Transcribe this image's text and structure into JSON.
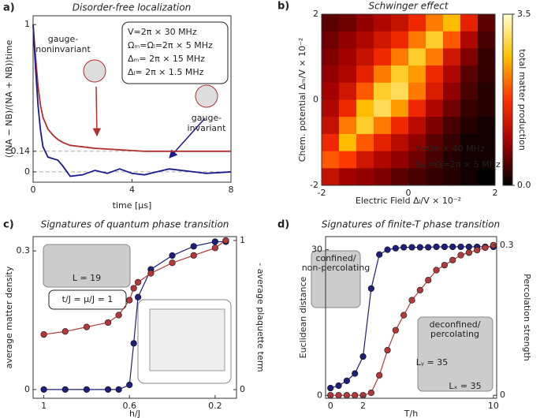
{
  "chart_data": [
    {
      "type": "line",
      "label": "a)",
      "title": "Disorder-free localization",
      "xlabel": "time [μs]",
      "ylabel": "⟨(NA − NB)/(NA + NB)⟩time",
      "x": [
        0,
        0.1,
        0.2,
        0.3,
        0.4,
        0.6,
        0.8,
        1,
        1.2,
        1.5,
        2,
        2.5,
        3,
        3.5,
        4,
        4.5,
        5,
        5.5,
        6,
        7,
        8
      ],
      "series": [
        {
          "name": "gauge-noninvariant",
          "color": "#b03030",
          "values": [
            1,
            0.78,
            0.58,
            0.45,
            0.37,
            0.29,
            0.25,
            0.22,
            0.2,
            0.18,
            0.17,
            0.16,
            0.155,
            0.15,
            0.145,
            0.14,
            0.14,
            0.14,
            0.14,
            0.14,
            0.14
          ]
        },
        {
          "name": "gauge-invariant",
          "color": "#1a1a8c",
          "values": [
            1,
            0.7,
            0.45,
            0.28,
            0.17,
            0.1,
            0.09,
            0.08,
            0.04,
            -0.03,
            -0.02,
            0.01,
            -0.01,
            0.02,
            -0.01,
            -0.02,
            0,
            0.02,
            0.01,
            -0.01,
            0
          ]
        }
      ],
      "xlim": [
        0,
        8
      ],
      "xticks": [
        0,
        4,
        8
      ],
      "ylim": [
        -0.07,
        1.06
      ],
      "yticks": [
        0,
        0.14,
        1
      ],
      "hlines": [
        0.14,
        0
      ],
      "annotations": [
        {
          "text": "gauge-",
          "color": "#b03030"
        },
        {
          "text": "noninvariant",
          "color": "#b03030"
        },
        {
          "text": "V=2π × 30 MHz",
          "color": "#222"
        },
        {
          "text": "Ωₘ=Ωₗ=2π × 5 MHz",
          "color": "#222"
        },
        {
          "text": "Δₘ= 2π × 15 MHz",
          "color": "#222"
        },
        {
          "text": "Δₗ= 2π × 1.5 MHz",
          "color": "#222"
        },
        {
          "text": "gauge-",
          "color": "#1a1a8c"
        },
        {
          "text": "invariant",
          "color": "#1a1a8c"
        }
      ]
    },
    {
      "type": "heatmap",
      "label": "b)",
      "title": "Schwinger effect",
      "xlabel": "Electric Field Δₗ/V × 10⁻²",
      "ylabel": "Chem. potential Δₘ/V × 10⁻²",
      "colorbar_label": "total matter production",
      "xlim": [
        -2,
        2
      ],
      "xticks": [
        -2,
        0,
        2
      ],
      "ylim": [
        -2,
        2
      ],
      "yticks": [
        -2,
        0,
        2
      ],
      "clim": [
        0,
        3.5
      ],
      "cticks": [
        {
          "value": 0,
          "label": "0.0"
        },
        3.5
      ],
      "colors": [
        "#000000",
        "#a00000",
        "#ff3000",
        "#ffc000",
        "#ffffd0"
      ],
      "z": [
        [
          0.5,
          0.6,
          0.8,
          1.0,
          1.2,
          1.6,
          2.2,
          2.6,
          1.5,
          0.5
        ],
        [
          0.6,
          0.8,
          1.0,
          1.3,
          1.6,
          2.2,
          2.8,
          2.0,
          1.0,
          0.4
        ],
        [
          0.7,
          0.9,
          1.2,
          1.6,
          2.2,
          2.8,
          2.2,
          1.3,
          0.7,
          0.3
        ],
        [
          0.8,
          1.0,
          1.5,
          2.2,
          2.8,
          2.4,
          1.6,
          1.0,
          0.5,
          0.3
        ],
        [
          0.9,
          1.3,
          2.0,
          2.8,
          3.0,
          2.2,
          1.4,
          0.8,
          0.4,
          0.2
        ],
        [
          1.0,
          1.6,
          2.6,
          3.0,
          2.4,
          1.6,
          1.0,
          0.6,
          0.3,
          0.2
        ],
        [
          1.2,
          2.2,
          2.8,
          2.2,
          1.6,
          1.1,
          0.7,
          0.4,
          0.2,
          0.1
        ],
        [
          1.6,
          2.6,
          2.0,
          1.5,
          1.1,
          0.8,
          0.5,
          0.3,
          0.1,
          0.1
        ],
        [
          2.0,
          1.8,
          1.3,
          1.0,
          0.8,
          0.6,
          0.4,
          0.2,
          0.1,
          0.1
        ],
        [
          1.2,
          0.9,
          0.8,
          0.7,
          0.5,
          0.4,
          0.3,
          0.2,
          0.1,
          0.0
        ]
      ],
      "annotations": [
        {
          "text": "V=2π × 40 MHz",
          "color": "#fff"
        },
        {
          "text": "Ωₘ=Ωₗ=2π × 5 MHz",
          "color": "#fff"
        }
      ]
    },
    {
      "type": "line",
      "markers": true,
      "label": "c)",
      "title": "Signatures of quantum phase transition",
      "xlabel": "h/J",
      "ylabel": "average matter density",
      "y2label": "- average plaquette term",
      "x": [
        1,
        0.9,
        0.8,
        0.7,
        0.65,
        0.6,
        0.58,
        0.56,
        0.5,
        0.4,
        0.3,
        0.2,
        0.15
      ],
      "series": [
        {
          "name": "average matter density",
          "color": "#1f1f7a",
          "values": [
            0,
            0,
            0,
            0,
            0,
            0.01,
            0.1,
            0.2,
            0.26,
            0.29,
            0.31,
            0.32,
            0.32
          ]
        },
        {
          "name": "- average plaquette term",
          "color": "#b03a3a",
          "axis": "y2",
          "values": [
            0.37,
            0.39,
            0.42,
            0.45,
            0.5,
            0.6,
            0.68,
            0.72,
            0.78,
            0.85,
            0.9,
            0.95,
            1.0
          ]
        }
      ],
      "xlim": [
        1.05,
        0.1
      ],
      "xticks": [
        1,
        0.6,
        0.2
      ],
      "ylim": [
        -0.019,
        0.331
      ],
      "yticks": [
        0,
        0.3
      ],
      "y2lim": [
        -0.058,
        1.026
      ],
      "y2ticks": [
        0,
        1
      ],
      "annotations": [
        {
          "text": "L = 19",
          "color": "#222"
        },
        {
          "text": "t/J = μ/J = 1",
          "color": "#222"
        }
      ]
    },
    {
      "type": "line",
      "markers": true,
      "label": "d)",
      "title": "Signatures of finite-T phase transition",
      "xlabel": "T/h",
      "ylabel": "Euclidean distance",
      "y2label": "Percolation strength",
      "x": [
        0,
        0.5,
        1,
        1.5,
        2,
        2.5,
        3,
        3.5,
        4,
        4.5,
        5,
        5.5,
        6,
        6.5,
        7,
        7.5,
        8,
        8.5,
        9,
        9.5,
        10
      ],
      "series": [
        {
          "name": "Euclidean distance",
          "color": "#1f1f7a",
          "values": [
            1.5,
            2,
            3,
            4.5,
            8,
            22,
            29,
            30,
            30.3,
            30.5,
            30.5,
            30.5,
            30.5,
            30.6,
            30.6,
            30.6,
            30.6,
            30.6,
            30.6,
            30.6,
            30.6
          ]
        },
        {
          "name": "Percolation strength",
          "color": "#b03a3a",
          "axis": "y2",
          "values": [
            0,
            0,
            0,
            0,
            0,
            0.005,
            0.04,
            0.09,
            0.13,
            0.16,
            0.19,
            0.21,
            0.23,
            0.25,
            0.26,
            0.27,
            0.28,
            0.285,
            0.29,
            0.295,
            0.3
          ]
        }
      ],
      "xlim": [
        -0.3,
        10.2
      ],
      "xticks": [
        0,
        2,
        10
      ],
      "ylim": [
        -0.6,
        32.7
      ],
      "yticks": [
        0,
        30
      ],
      "y2lim": [
        -0.006,
        0.317
      ],
      "y2ticks": [
        0,
        0.3
      ],
      "annotations": [
        {
          "text": "confined/",
          "color": "#222"
        },
        {
          "text": "non-percolating",
          "color": "#222"
        },
        {
          "text": "deconfined/",
          "color": "#222"
        },
        {
          "text": "percolating",
          "color": "#222"
        },
        {
          "text": "Lᵧ = 35",
          "color": "#222"
        },
        {
          "text": "Lₓ = 35",
          "color": "#222"
        }
      ]
    }
  ]
}
